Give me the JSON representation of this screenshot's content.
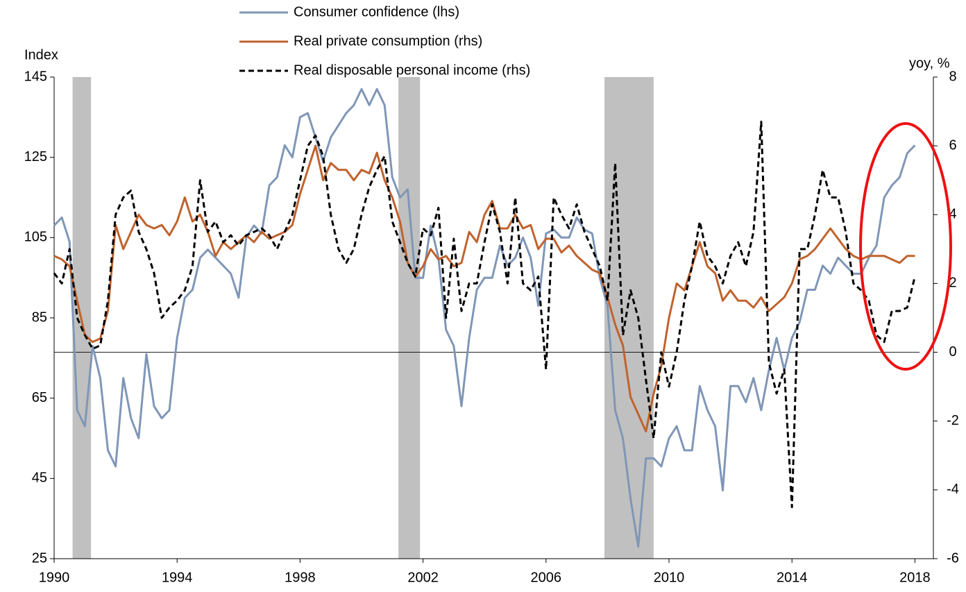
{
  "chart_data": {
    "type": "line",
    "y_label": "Index",
    "y2_label": "yoy, %",
    "x": [
      1990,
      1990.25,
      1990.5,
      1990.75,
      1991,
      1991.25,
      1991.5,
      1991.75,
      1992,
      1992.25,
      1992.5,
      1992.75,
      1993,
      1993.25,
      1993.5,
      1993.75,
      1994,
      1994.25,
      1994.5,
      1994.75,
      1995,
      1995.25,
      1995.5,
      1995.75,
      1996,
      1996.25,
      1996.5,
      1996.75,
      1997,
      1997.25,
      1997.5,
      1997.75,
      1998,
      1998.25,
      1998.5,
      1998.75,
      1999,
      1999.25,
      1999.5,
      1999.75,
      2000,
      2000.25,
      2000.5,
      2000.75,
      2001,
      2001.25,
      2001.5,
      2001.75,
      2002,
      2002.25,
      2002.5,
      2002.75,
      2003,
      2003.25,
      2003.5,
      2003.75,
      2004,
      2004.25,
      2004.5,
      2004.75,
      2005,
      2005.25,
      2005.5,
      2005.75,
      2006,
      2006.25,
      2006.5,
      2006.75,
      2007,
      2007.25,
      2007.5,
      2007.75,
      2008,
      2008.25,
      2008.5,
      2008.75,
      2009,
      2009.25,
      2009.5,
      2009.75,
      2010,
      2010.25,
      2010.5,
      2010.75,
      2011,
      2011.25,
      2011.5,
      2011.75,
      2012,
      2012.25,
      2012.5,
      2012.75,
      2013,
      2013.25,
      2013.5,
      2013.75,
      2014,
      2014.25,
      2014.5,
      2014.75,
      2015,
      2015.25,
      2015.5,
      2015.75,
      2016,
      2016.25,
      2016.5,
      2016.75,
      2017,
      2017.25,
      2017.5,
      2017.75,
      2018
    ],
    "series": [
      {
        "name": "Consumer confidence (lhs)",
        "color": "#7f96b7",
        "dash": false,
        "values": [
          108,
          110,
          104,
          62,
          58,
          78,
          70,
          52,
          48,
          70,
          60,
          55,
          76,
          63,
          60,
          62,
          80,
          90,
          92,
          100,
          102,
          100,
          98,
          96,
          90,
          105,
          108,
          106,
          118,
          120,
          128,
          125,
          135,
          136,
          130,
          124,
          130,
          133,
          136,
          138,
          142,
          138,
          142,
          138,
          120,
          115,
          117,
          95,
          95,
          108,
          100,
          82,
          78,
          63,
          80,
          92,
          95,
          95,
          103,
          98,
          100,
          105,
          100,
          88,
          106,
          107,
          105,
          105,
          110,
          107,
          106,
          95,
          88,
          62,
          55,
          40,
          28,
          50,
          50,
          48,
          55,
          58,
          52,
          52,
          68,
          62,
          58,
          42,
          68,
          68,
          64,
          70,
          62,
          72,
          80,
          72,
          80,
          84,
          92,
          92,
          98,
          96,
          100,
          98,
          96,
          96,
          100,
          103,
          115,
          118,
          120,
          126,
          128
        ]
      },
      {
        "name": "Real private consumption (rhs)",
        "color": "#c0622d",
        "dash": false,
        "axis": "y2",
        "values": [
          2.8,
          2.7,
          2.5,
          1.5,
          0.5,
          0.3,
          0.4,
          1.2,
          3.7,
          3.0,
          3.5,
          4.0,
          3.7,
          3.6,
          3.7,
          3.4,
          3.8,
          4.5,
          3.8,
          4.0,
          3.5,
          2.8,
          3.2,
          3.0,
          3.2,
          3.4,
          3.2,
          3.5,
          3.3,
          3.4,
          3.5,
          3.7,
          4.6,
          5.3,
          6.0,
          5.0,
          5.5,
          5.3,
          5.3,
          5.0,
          5.3,
          5.2,
          5.8,
          5.0,
          4.5,
          3.8,
          2.6,
          2.2,
          2.5,
          3.0,
          2.7,
          2.8,
          2.5,
          2.6,
          3.5,
          3.2,
          4.0,
          4.4,
          3.6,
          3.6,
          4.0,
          3.6,
          3.7,
          3.0,
          3.3,
          3.3,
          2.9,
          3.1,
          2.8,
          2.6,
          2.4,
          2.3,
          1.6,
          0.8,
          0.2,
          -1.3,
          -1.8,
          -2.3,
          -1.2,
          -0.4,
          1.0,
          2.0,
          1.8,
          2.5,
          3.2,
          2.5,
          2.3,
          1.5,
          1.8,
          1.5,
          1.5,
          1.3,
          1.6,
          1.2,
          1.4,
          1.6,
          2.0,
          2.7,
          2.8,
          3.0,
          3.3,
          3.6,
          3.3,
          3.0,
          2.8,
          2.7,
          2.8,
          2.8,
          2.8,
          2.7,
          2.6,
          2.8,
          2.8
        ]
      },
      {
        "name": "Real disposable personal income (rhs)",
        "color": "#000000",
        "dash": true,
        "axis": "y2",
        "values": [
          2.3,
          2.0,
          3.0,
          1.0,
          0.5,
          0.1,
          0.2,
          1.5,
          4.0,
          4.5,
          4.7,
          3.5,
          3.0,
          2.3,
          1.0,
          1.3,
          1.5,
          1.8,
          2.5,
          5.0,
          3.5,
          3.8,
          3.2,
          3.4,
          3.1,
          3.4,
          3.5,
          3.6,
          3.4,
          3.0,
          3.5,
          4.0,
          5.0,
          6.0,
          6.3,
          5.7,
          4.0,
          3.0,
          2.6,
          3.0,
          4.0,
          4.8,
          5.3,
          5.7,
          3.8,
          3.2,
          2.6,
          2.2,
          3.6,
          3.4,
          4.2,
          1.0,
          3.3,
          1.2,
          2.0,
          2.0,
          3.2,
          4.3,
          3.5,
          2.0,
          4.5,
          2.0,
          1.8,
          2.2,
          -0.5,
          4.5,
          4.0,
          3.6,
          4.3,
          3.5,
          3.0,
          2.5,
          1.5,
          5.5,
          0.5,
          1.8,
          1.0,
          -0.8,
          -2.5,
          0.0,
          -1.0,
          0.0,
          1.5,
          2.5,
          3.8,
          2.8,
          2.5,
          2.0,
          2.8,
          3.2,
          2.5,
          3.5,
          6.7,
          -0.3,
          -1.2,
          -0.5,
          -4.5,
          3.0,
          3.0,
          4.0,
          5.3,
          4.5,
          4.5,
          3.5,
          2.0,
          1.8,
          1.5,
          0.5,
          0.3,
          1.2,
          1.2,
          1.3,
          2.2
        ]
      }
    ],
    "recessions": [
      [
        1990.6,
        1991.2
      ],
      [
        2001.2,
        2001.9
      ],
      [
        2007.9,
        2009.5
      ]
    ],
    "xlim": [
      1990,
      2018.6
    ],
    "xticks": [
      1990,
      1994,
      1998,
      2002,
      2006,
      2010,
      2014,
      2018
    ],
    "ylim": [
      25,
      145
    ],
    "yticks": [
      25,
      45,
      65,
      85,
      105,
      125,
      145
    ],
    "y2lim": [
      -6,
      8
    ],
    "y2ticks": [
      -6,
      -4,
      -2,
      0,
      2,
      4,
      6,
      8
    ],
    "zero_line": 0
  }
}
